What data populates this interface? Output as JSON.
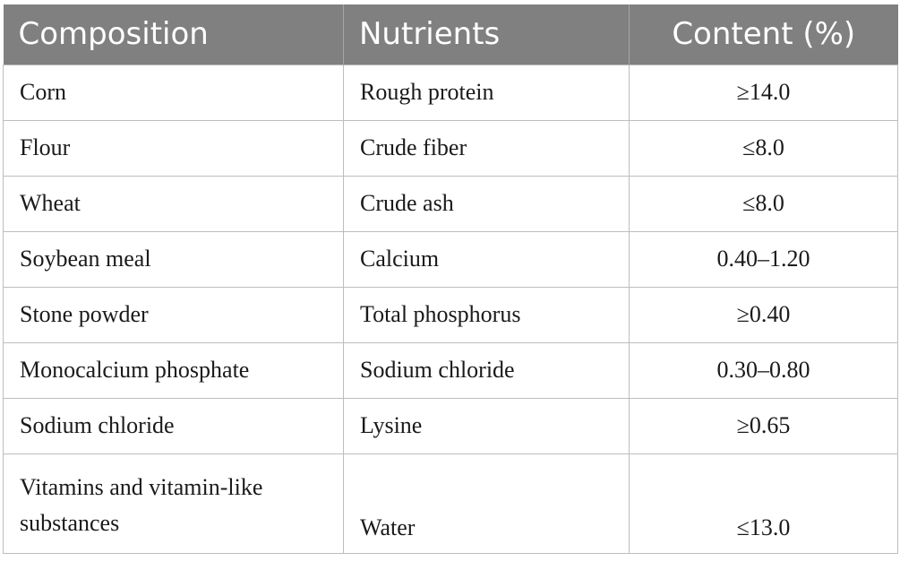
{
  "table": {
    "headers": [
      "Composition",
      "Nutrients",
      "Content (%)"
    ],
    "rows": [
      [
        "Corn",
        "Rough protein",
        "≥14.0"
      ],
      [
        "Flour",
        "Crude fiber",
        "≤8.0"
      ],
      [
        "Wheat",
        "Crude ash",
        "≤8.0"
      ],
      [
        "Soybean meal",
        "Calcium",
        "0.40–1.20"
      ],
      [
        "Stone powder",
        "Total phosphorus",
        "≥0.40"
      ],
      [
        "Monocalcium phosphate",
        "Sodium chloride",
        "0.30–0.80"
      ],
      [
        "Sodium chloride",
        "Lysine",
        "≥0.65"
      ],
      [
        "Vitamins and vitamin-like substances",
        "Water",
        "≤13.0"
      ]
    ]
  },
  "colors": {
    "header_bg": "#808080",
    "header_text": "#ffffff",
    "grid": "#bdbdbd"
  }
}
